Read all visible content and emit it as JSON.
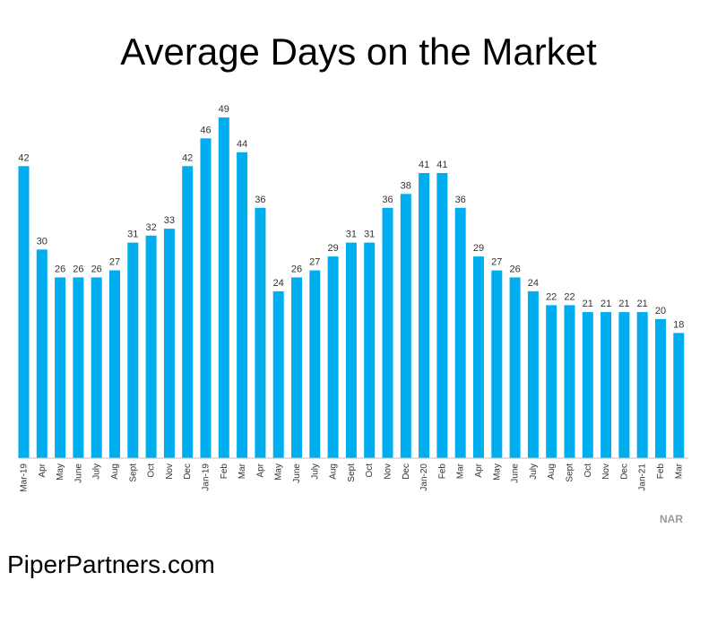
{
  "chart_data": {
    "type": "bar",
    "title": "Average Days on the Market",
    "categories": [
      "Mar-19",
      "Apr",
      "May",
      "June",
      "July",
      "Aug",
      "Sept",
      "Oct",
      "Nov",
      "Dec",
      "Jan-19",
      "Feb",
      "Mar",
      "Apr",
      "May",
      "June",
      "July",
      "Aug",
      "Sept",
      "Oct",
      "Nov",
      "Dec",
      "Jan-20",
      "Feb",
      "Mar",
      "Apr",
      "May",
      "June",
      "July",
      "Aug",
      "Sept",
      "Oct",
      "Nov",
      "Dec",
      "Jan-21",
      "Feb",
      "Mar"
    ],
    "values": [
      42,
      30,
      26,
      26,
      26,
      27,
      31,
      32,
      33,
      42,
      46,
      49,
      44,
      36,
      24,
      26,
      27,
      29,
      31,
      31,
      36,
      38,
      41,
      41,
      36,
      29,
      27,
      26,
      24,
      22,
      22,
      21,
      21,
      21,
      21,
      20,
      18
    ],
    "xlabel": "",
    "ylabel": "",
    "ylim": [
      0,
      49
    ],
    "grid": false,
    "bar_color": "#00aeef"
  },
  "source": "NAR",
  "brand": "PiperPartners.com"
}
